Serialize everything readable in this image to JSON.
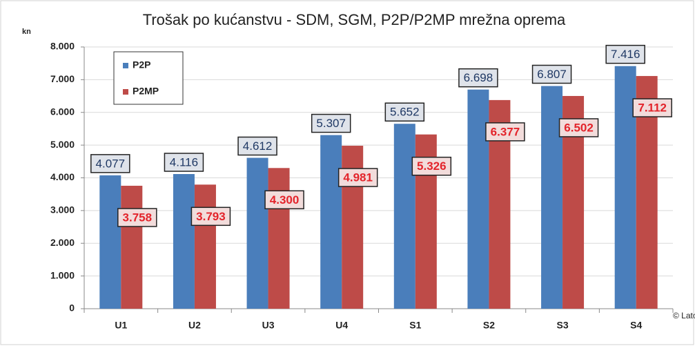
{
  "chart_data": {
    "type": "bar",
    "title": "Trošak po kućanstvu - SDM, SGM, P2P/P2MP mrežna oprema",
    "y_label": "kn",
    "annotation": "© Lator",
    "categories": [
      "U1",
      "U2",
      "U3",
      "U4",
      "S1",
      "S2",
      "S3",
      "S4"
    ],
    "series": [
      {
        "name": "P2P",
        "color": "#4a7ebb",
        "values": [
          4077,
          4116,
          4612,
          5307,
          5652,
          6698,
          6807,
          7416
        ],
        "value_labels": [
          "4.077",
          "4.116",
          "4.612",
          "5.307",
          "5.652",
          "6.698",
          "6.807",
          "7.416"
        ]
      },
      {
        "name": "P2MP",
        "color": "#be4b48",
        "values": [
          3758,
          3793,
          4300,
          4981,
          5326,
          6377,
          6502,
          7112
        ],
        "value_labels": [
          "3.758",
          "3.793",
          "4.300",
          "4.981",
          "5.326",
          "6.377",
          "6.502",
          "7.112"
        ]
      }
    ],
    "ylim": [
      0,
      8000
    ],
    "yticks": [
      0,
      {
        "value": 1000,
        "label": "1.000"
      },
      {
        "value": 2000,
        "label": "2.000"
      },
      {
        "value": 3000,
        "label": "3.000"
      },
      {
        "value": 4000,
        "label": "4.000"
      },
      {
        "value": 5000,
        "label": "5.000"
      },
      {
        "value": 6000,
        "label": "6.000"
      },
      {
        "value": 7000,
        "label": "7.000"
      },
      {
        "value": 8000,
        "label": "8.000"
      }
    ],
    "grid": true,
    "legend": "top-left"
  }
}
